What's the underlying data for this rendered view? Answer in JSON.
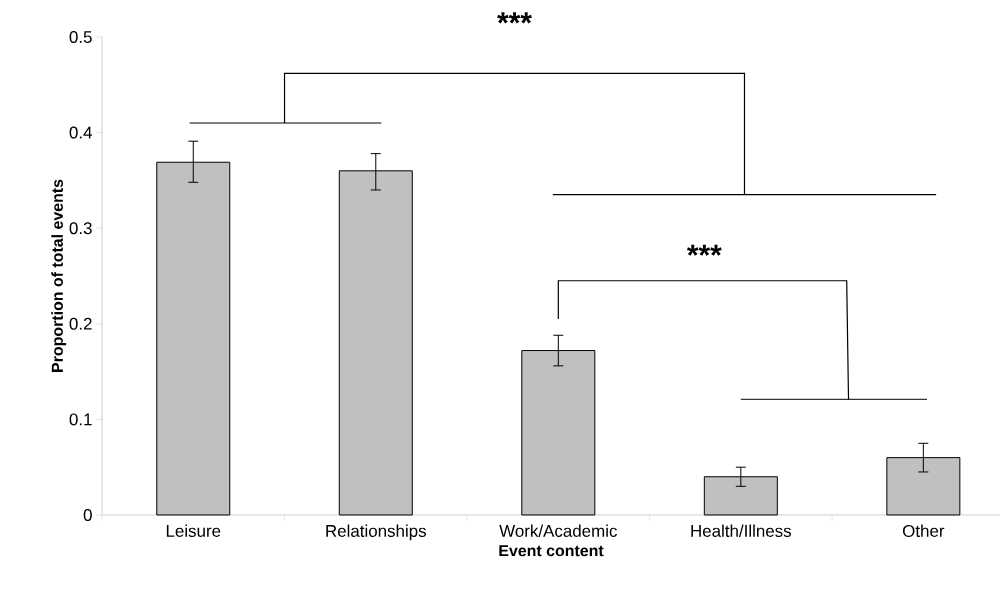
{
  "chart_data": {
    "type": "bar",
    "xlabel": "Event content",
    "ylabel": "Proportion of total events",
    "categories": [
      "Leisure",
      "Relationships",
      "Work/Academic",
      "Health/Illness",
      "Other"
    ],
    "values": [
      0.369,
      0.36,
      0.172,
      0.04,
      0.06
    ],
    "errors": [
      [
        0.348,
        0.391
      ],
      [
        0.34,
        0.378
      ],
      [
        0.156,
        0.188
      ],
      [
        0.03,
        0.05
      ],
      [
        0.045,
        0.075
      ]
    ],
    "color": "#c0c0c0",
    "ylim": [
      0,
      0.5
    ],
    "yticks": [
      0,
      0.1,
      0.2,
      0.3,
      0.4,
      0.5
    ],
    "annotations": [
      "***",
      "***"
    ]
  }
}
